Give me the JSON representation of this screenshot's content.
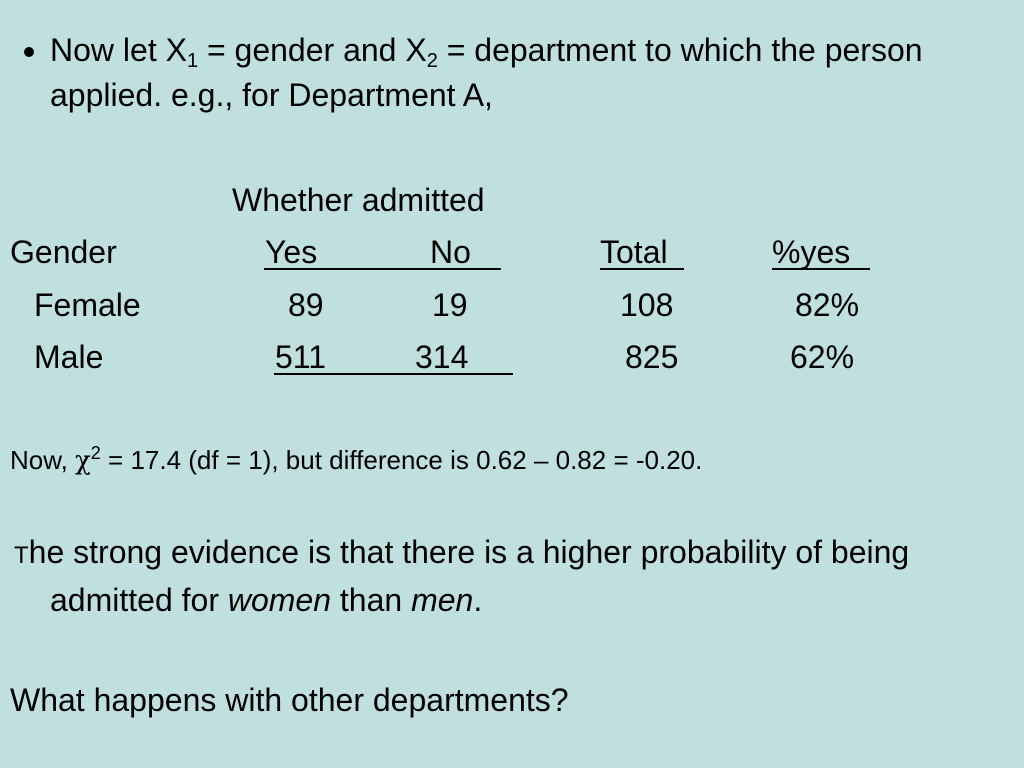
{
  "bullet": {
    "parts": [
      "Now let X",
      "1",
      " = gender and X",
      "2",
      " = department to which the person applied.  e.g., for Department A,"
    ]
  },
  "table": {
    "header": "Whether admitted",
    "columns": [
      "Gender",
      "Yes",
      "No",
      "Total",
      "%yes"
    ],
    "rows": [
      [
        "Female",
        "89",
        "19",
        "108",
        "82%"
      ],
      [
        "Male",
        "511",
        "314",
        "825",
        "62%"
      ]
    ]
  },
  "stat_line": {
    "parts": [
      "Now, ",
      "χ",
      "2",
      " = 17.4 (df = 1), but difference is 0.62 – 0.82 = -0.20."
    ]
  },
  "conclusion": {
    "parts": [
      "T",
      "he strong evidence is that there is a higher probability of being admitted for ",
      "women",
      " than ",
      "men",
      "."
    ]
  },
  "question": "What happens with other departments?"
}
